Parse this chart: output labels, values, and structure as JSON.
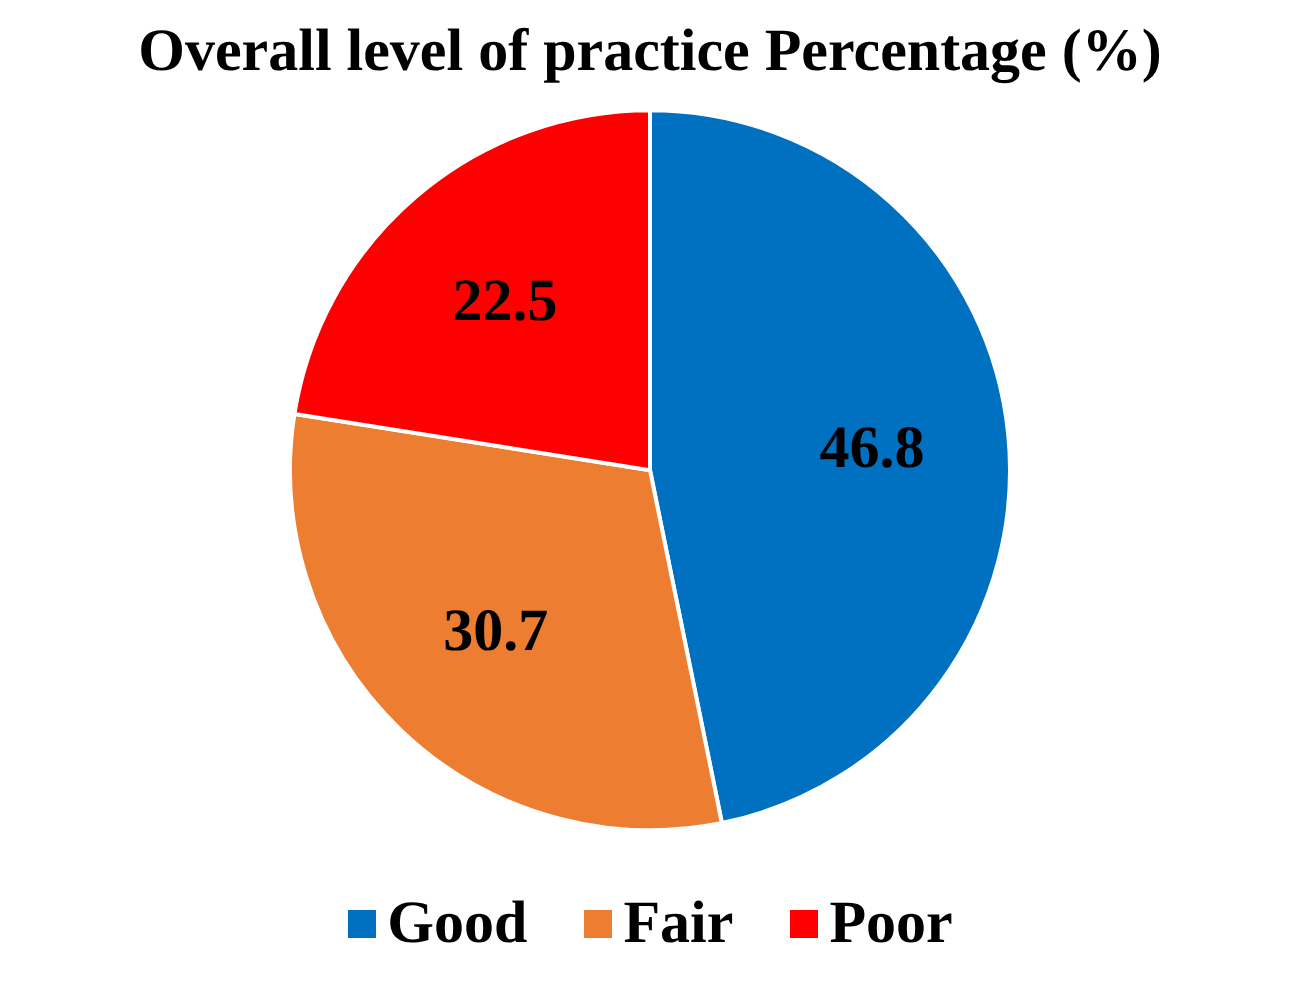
{
  "chart_data": {
    "type": "pie",
    "title": "Overall level of practice Percentage (%)",
    "categories": [
      "Good",
      "Fair",
      "Poor"
    ],
    "values": [
      46.8,
      30.7,
      22.5
    ],
    "colors": [
      "#0070c0",
      "#ed7d31",
      "#ff0000"
    ],
    "data_labels": true,
    "legend": "bottom"
  }
}
